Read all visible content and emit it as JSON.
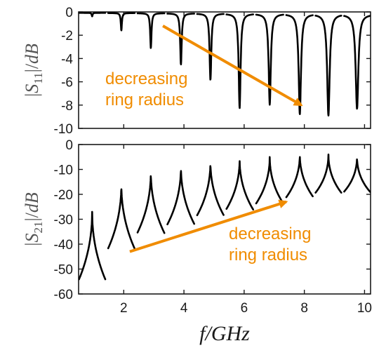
{
  "colors": {
    "trace": "#000000",
    "annotation": "#f08c00",
    "axis": "#1a1a1a"
  },
  "chart_data": [
    {
      "type": "line",
      "ylabel_parts": [
        "|",
        "S",
        "11",
        "|/",
        "dB"
      ],
      "xlim": [
        0.5,
        10.2
      ],
      "ylim": [
        -10,
        0
      ],
      "yticks": [
        0,
        -2,
        -4,
        -6,
        -8,
        -10
      ],
      "grid": false,
      "resonances": [
        {
          "f": 0.95,
          "min": -0.3
        },
        {
          "f": 1.92,
          "min": -1.5
        },
        {
          "f": 2.9,
          "min": -3.0
        },
        {
          "f": 3.9,
          "min": -4.4
        },
        {
          "f": 4.88,
          "min": -5.7
        },
        {
          "f": 5.85,
          "min": -8.1
        },
        {
          "f": 6.85,
          "min": -7.8
        },
        {
          "f": 7.85,
          "min": -8.6
        },
        {
          "f": 8.8,
          "min": -8.7
        },
        {
          "f": 9.75,
          "min": -8.1
        }
      ],
      "annotation": {
        "lines": [
          "decreasing",
          "ring radius"
        ],
        "arrow_from": [
          3.3,
          -1.2
        ],
        "arrow_to": [
          7.9,
          -8.0
        ]
      }
    },
    {
      "type": "line",
      "ylabel_parts": [
        "|",
        "S",
        "21",
        "|/",
        "dB"
      ],
      "xlabel": "f/GHz",
      "xlim": [
        0.5,
        10.2
      ],
      "ylim": [
        -60,
        0
      ],
      "xticks": [
        2,
        4,
        6,
        8,
        10
      ],
      "yticks": [
        0,
        -10,
        -20,
        -30,
        -40,
        -50,
        -60
      ],
      "grid": false,
      "resonances": [
        {
          "f": 0.95,
          "peak": -27
        },
        {
          "f": 1.92,
          "peak": -16
        },
        {
          "f": 2.9,
          "peak": -11
        },
        {
          "f": 3.9,
          "peak": -9
        },
        {
          "f": 4.88,
          "peak": -7
        },
        {
          "f": 5.85,
          "peak": -6
        },
        {
          "f": 6.85,
          "peak": -5
        },
        {
          "f": 7.85,
          "peak": -4
        },
        {
          "f": 8.8,
          "peak": -4
        },
        {
          "f": 9.75,
          "peak": -5
        }
      ],
      "annotation": {
        "lines": [
          "decreasing",
          "ring radius"
        ],
        "arrow_from": [
          2.2,
          -43
        ],
        "arrow_to": [
          7.4,
          -23
        ]
      }
    }
  ]
}
